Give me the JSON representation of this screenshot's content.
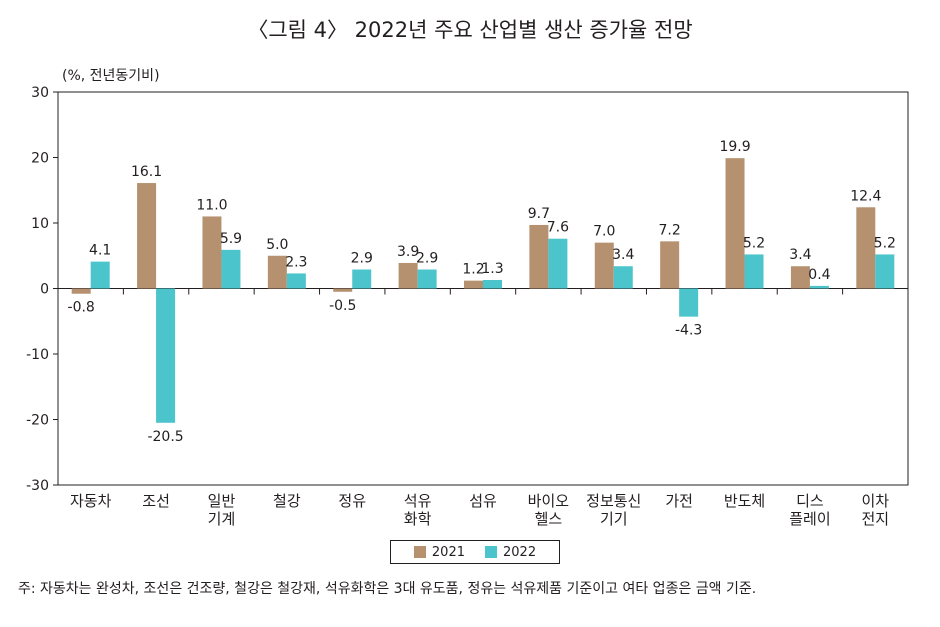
{
  "chart_data": {
    "type": "bar",
    "title": "〈그림 4〉 2022년 주요 산업별 생산 증가율 전망",
    "ylabel": "(%, 전년동기비)",
    "xlabel": "",
    "ylim": [
      -30,
      30
    ],
    "yticks": [
      30,
      20,
      10,
      0,
      -10,
      -20,
      -30
    ],
    "categories": [
      [
        "자동차"
      ],
      [
        "조선"
      ],
      [
        "일반",
        "기계"
      ],
      [
        "철강"
      ],
      [
        "정유"
      ],
      [
        "석유",
        "화학"
      ],
      [
        "섬유"
      ],
      [
        "바이오",
        "헬스"
      ],
      [
        "정보통신",
        "기기"
      ],
      [
        "가전"
      ],
      [
        "반도체"
      ],
      [
        "디스",
        "플레이"
      ],
      [
        "이차",
        "전지"
      ]
    ],
    "series": [
      {
        "name": "2021",
        "color": "#b5916f",
        "values": [
          -0.8,
          16.1,
          11.0,
          5.0,
          -0.5,
          3.9,
          1.2,
          9.7,
          7.0,
          7.2,
          19.9,
          3.4,
          12.4
        ],
        "labels": [
          "-0.8",
          "16.1",
          "11.0",
          "5.0",
          "-0.5",
          "3.9",
          "1.2",
          "9.7",
          "7.0",
          "7.2",
          "19.9",
          "3.4",
          "12.4"
        ]
      },
      {
        "name": "2022",
        "color": "#4cc4cc",
        "values": [
          4.1,
          -20.5,
          5.9,
          2.3,
          2.9,
          2.9,
          1.3,
          7.6,
          3.4,
          -4.3,
          5.2,
          0.4,
          5.2
        ],
        "labels": [
          "4.1",
          "-20.5",
          "5.9",
          "2.3",
          "2.9",
          "2.9",
          "1.3",
          "7.6",
          "3.4",
          "-4.3",
          "5.2",
          "0.4",
          "5.2"
        ]
      }
    ],
    "legend_position": "bottom-center",
    "grid": false
  },
  "footnote": "주: 자동차는 완성차, 조선은 건조량, 철강은 철강재, 석유화학은 3대 유도품, 정유는 석유제품 기준이고 여타 업종은 금액 기준."
}
